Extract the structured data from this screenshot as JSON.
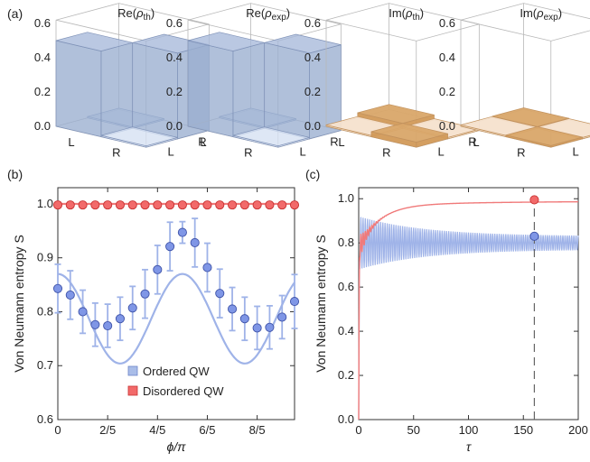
{
  "panel_labels": {
    "a": "(a)",
    "b": "(b)",
    "c": "(c)"
  },
  "colors": {
    "ordered_fill": "#a9bcdf",
    "ordered_stroke": "#6d84c8",
    "ordered_line": "#9fb3e8",
    "disordered_fill": "#f26a6a",
    "disordered_stroke": "#c83232",
    "disordered_line": "#f07a7a",
    "re_bar": "#9aaed0",
    "im_bar_dark": "#d29a58",
    "im_bar_light": "#f2dcc4"
  },
  "chart_data": [
    {
      "type": "bar3d",
      "panel": "(a)",
      "charts": [
        {
          "title_main": "Re(",
          "title_sym": "ρ",
          "title_sub": "th",
          "title_end": ")",
          "kind": "re",
          "matrix": [
            [
              0.5,
              0.0
            ],
            [
              0.0,
              0.5
            ]
          ]
        },
        {
          "title_main": "Re(",
          "title_sym": "ρ",
          "title_sub": "exp",
          "title_end": ")",
          "kind": "re",
          "matrix": [
            [
              0.5,
              0.0
            ],
            [
              0.0,
              0.5
            ]
          ]
        },
        {
          "title_main": "Im(",
          "title_sym": "ρ",
          "title_sub": "th",
          "title_end": ")",
          "kind": "im",
          "matrix": [
            [
              0.0,
              0.03
            ],
            [
              0.03,
              0.0
            ]
          ]
        },
        {
          "title_main": "Im(",
          "title_sym": "ρ",
          "title_sub": "exp",
          "title_end": ")",
          "kind": "im",
          "matrix": [
            [
              0.0,
              0.01
            ],
            [
              0.01,
              0.0
            ]
          ]
        }
      ],
      "z_ticks": [
        "0.0",
        "0.2",
        "0.4",
        "0.6"
      ],
      "axis_labels": [
        "L",
        "R"
      ]
    },
    {
      "type": "scatter",
      "panel": "(b)",
      "xlabel": "ϕ/π",
      "ylabel": "Von Neumann entropy S",
      "xlim": [
        0,
        1.9
      ],
      "ylim": [
        0.6,
        1.03
      ],
      "x_ticks": [
        {
          "v": 0,
          "label": "0"
        },
        {
          "v": 0.4,
          "label": "2/5"
        },
        {
          "v": 0.8,
          "label": "4/5"
        },
        {
          "v": 1.2,
          "label": "6/5"
        },
        {
          "v": 1.6,
          "label": "8/5"
        }
      ],
      "y_ticks": [
        {
          "v": 0.6,
          "label": "0.6"
        },
        {
          "v": 0.7,
          "label": "0.7"
        },
        {
          "v": 0.8,
          "label": "0.8"
        },
        {
          "v": 0.9,
          "label": "0.9"
        },
        {
          "v": 1.0,
          "label": "1.0"
        }
      ],
      "legend": {
        "position": "bottom-center",
        "entries": [
          {
            "label": "Ordered QW",
            "series": "ordered"
          },
          {
            "label": "Disordered QW",
            "series": "disordered"
          }
        ]
      },
      "series": [
        {
          "name": "Ordered QW",
          "key": "ordered",
          "x": [
            0,
            0.1,
            0.2,
            0.3,
            0.4,
            0.5,
            0.6,
            0.7,
            0.8,
            0.9,
            1.0,
            1.1,
            1.2,
            1.3,
            1.4,
            1.5,
            1.6,
            1.7,
            1.8,
            1.9
          ],
          "y": [
            0.843,
            0.831,
            0.8,
            0.776,
            0.774,
            0.787,
            0.807,
            0.833,
            0.878,
            0.921,
            0.947,
            0.928,
            0.882,
            0.834,
            0.805,
            0.787,
            0.77,
            0.771,
            0.79,
            0.819
          ],
          "err": [
            0.045,
            0.045,
            0.04,
            0.04,
            0.04,
            0.04,
            0.04,
            0.045,
            0.045,
            0.045,
            0.02,
            0.045,
            0.045,
            0.045,
            0.04,
            0.04,
            0.04,
            0.04,
            0.04,
            0.05
          ]
        },
        {
          "name": "Disordered QW",
          "key": "disordered",
          "x": [
            0,
            0.1,
            0.2,
            0.3,
            0.4,
            0.5,
            0.6,
            0.7,
            0.8,
            0.9,
            1.0,
            1.1,
            1.2,
            1.3,
            1.4,
            1.5,
            1.6,
            1.7,
            1.8,
            1.9
          ],
          "y": [
            0.998,
            0.998,
            0.998,
            0.998,
            0.998,
            0.998,
            0.998,
            0.998,
            0.998,
            0.998,
            0.998,
            0.998,
            0.998,
            0.998,
            0.998,
            0.998,
            0.998,
            0.998,
            0.998,
            0.998
          ]
        }
      ],
      "theory_ordered": {
        "mean": 0.787,
        "amplitude": 0.083,
        "max_at": 1.0,
        "period": 1.0
      },
      "theory_disordered": 1.0
    },
    {
      "type": "line",
      "panel": "(c)",
      "xlabel": "τ",
      "ylabel": "Von Neumann entropy S",
      "xlim": [
        0,
        200
      ],
      "ylim": [
        0,
        1.05
      ],
      "x_ticks": [
        0,
        50,
        100,
        150,
        200
      ],
      "y_ticks": [
        {
          "v": 0,
          "label": "0.0"
        },
        {
          "v": 0.2,
          "label": "0.2"
        },
        {
          "v": 0.4,
          "label": "0.4"
        },
        {
          "v": 0.6,
          "label": "0.6"
        },
        {
          "v": 0.8,
          "label": "0.8"
        },
        {
          "v": 1.0,
          "label": "1.0"
        }
      ],
      "series": [
        {
          "key": "disordered",
          "asymptote": 0.99,
          "start": 0.75
        },
        {
          "key": "ordered",
          "asymptote": 0.8,
          "start": 0.62
        }
      ],
      "markers": [
        {
          "x": 160,
          "y": 0.995,
          "series": "disordered"
        },
        {
          "x": 160,
          "y": 0.83,
          "series": "ordered"
        }
      ],
      "vline_x": 160
    }
  ]
}
